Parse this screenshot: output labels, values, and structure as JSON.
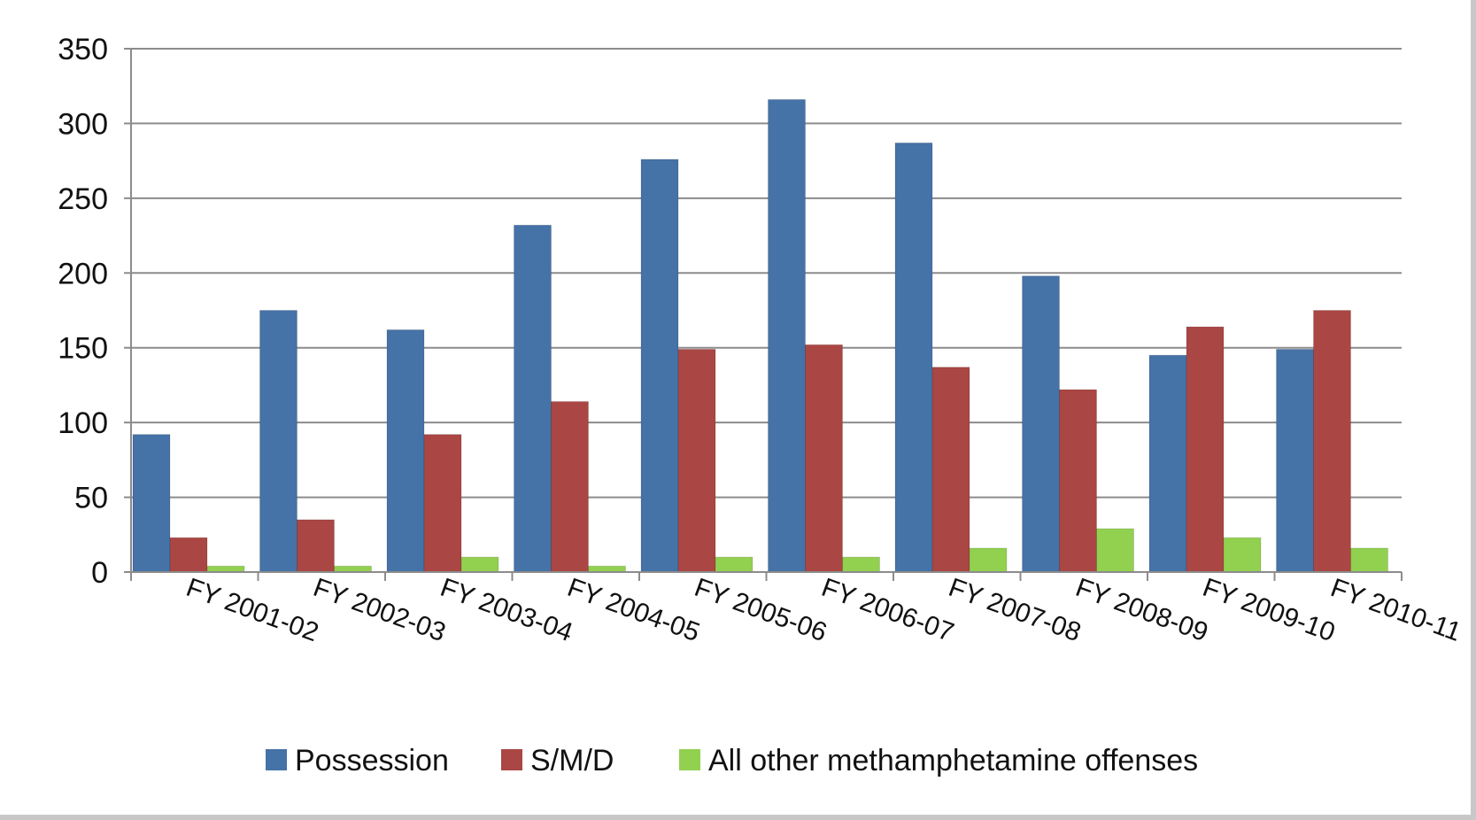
{
  "chart_data": {
    "type": "bar",
    "title": "",
    "xlabel": "",
    "ylabel": "",
    "ylim": [
      0,
      350
    ],
    "yticks": [
      0,
      50,
      100,
      150,
      200,
      250,
      300,
      350
    ],
    "grid": true,
    "legend_position": "bottom",
    "categories": [
      "FY 2001-02",
      "FY 2002-03",
      "FY 2003-04",
      "FY 2004-05",
      "FY 2005-06",
      "FY 2006-07",
      "FY 2007-08",
      "FY 2008-09",
      "FY 2009-10",
      "FY 2010-11"
    ],
    "series": [
      {
        "name": "Possession",
        "color": "#4572a7",
        "values": [
          92,
          175,
          162,
          232,
          276,
          316,
          287,
          198,
          145,
          149
        ]
      },
      {
        "name": "S/M/D",
        "color": "#aa4643",
        "values": [
          23,
          35,
          92,
          114,
          149,
          152,
          137,
          122,
          164,
          175
        ]
      },
      {
        "name": "All other methamphetamine  offenses",
        "color": "#92d050",
        "values": [
          4,
          4,
          10,
          4,
          10,
          10,
          16,
          29,
          23,
          16
        ]
      }
    ]
  }
}
